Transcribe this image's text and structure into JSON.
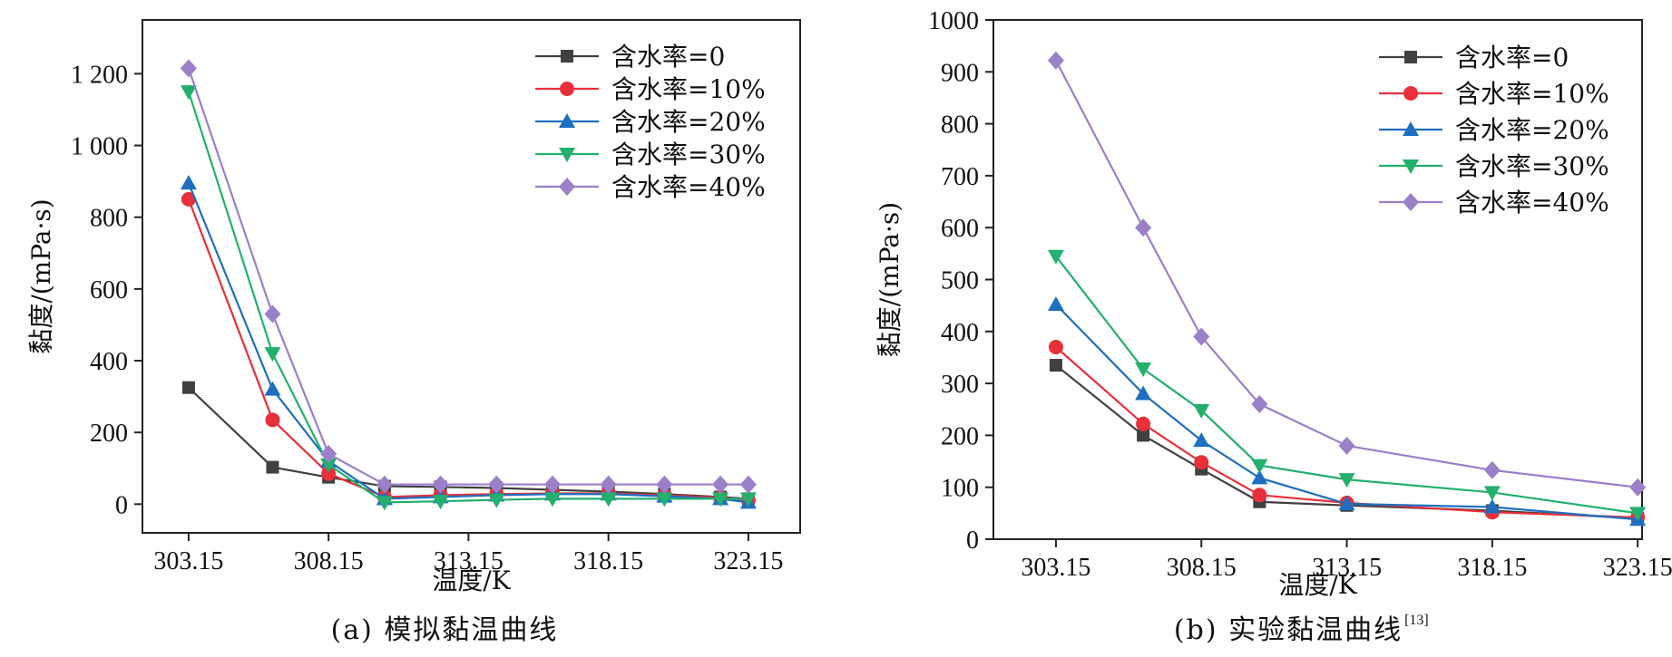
{
  "chart_data": [
    {
      "type": "line",
      "panel": "a",
      "caption": "(a) 模拟黏温曲线",
      "xlabel": "温度/K",
      "ylabel": "黏度/(mPa·s)",
      "xlim": [
        301.5,
        325
      ],
      "ylim": [
        -80,
        1350
      ],
      "xticks": [
        303.15,
        308.15,
        313.15,
        318.15,
        323.15
      ],
      "xtick_labels": [
        "303.15",
        "308.15",
        "313.15",
        "318.15",
        "323.15"
      ],
      "yticks": [
        0,
        200,
        400,
        600,
        800,
        1000,
        1200
      ],
      "ytick_labels": [
        "0",
        "200",
        "400",
        "600",
        "800",
        "1 000",
        "1 200"
      ],
      "legend_position": "top-right",
      "x": [
        303.15,
        306.15,
        308.15,
        310.15,
        312.15,
        314.15,
        316.15,
        318.15,
        320.15,
        322.15,
        323.15
      ],
      "series": [
        {
          "name": "含水率=0",
          "color": "#404040",
          "marker": "square",
          "values": [
            325,
            103,
            75,
            50,
            48,
            45,
            40,
            35,
            28,
            20,
            15
          ]
        },
        {
          "name": "含水率=10%",
          "color": "#e8303a",
          "marker": "circle",
          "values": [
            850,
            235,
            85,
            20,
            25,
            28,
            30,
            30,
            25,
            18,
            10
          ]
        },
        {
          "name": "含水率=20%",
          "color": "#1e6fc0",
          "marker": "triangle-up",
          "values": [
            895,
            320,
            120,
            15,
            20,
            25,
            28,
            28,
            22,
            15,
            5
          ]
        },
        {
          "name": "含水率=30%",
          "color": "#22b06c",
          "marker": "triangle-down",
          "values": [
            1150,
            420,
            110,
            5,
            8,
            12,
            15,
            15,
            15,
            15,
            15
          ]
        },
        {
          "name": "含水率=40%",
          "color": "#9b7fc9",
          "marker": "diamond",
          "values": [
            1215,
            530,
            140,
            55,
            55,
            55,
            55,
            55,
            55,
            55,
            55
          ]
        }
      ]
    },
    {
      "type": "line",
      "panel": "b",
      "caption": "(b) 实验黏温曲线",
      "caption_sup": "[13]",
      "xlabel": "温度/K",
      "ylabel": "黏度/(mPa·s)",
      "xlim": [
        301.0,
        323.3
      ],
      "ylim": [
        0,
        1000
      ],
      "xticks": [
        303.15,
        308.15,
        313.15,
        318.15,
        323.15
      ],
      "xtick_labels": [
        "303.15",
        "308.15",
        "313.15",
        "318.15",
        "323.15"
      ],
      "yticks": [
        0,
        100,
        200,
        300,
        400,
        500,
        600,
        700,
        800,
        900,
        1000
      ],
      "ytick_labels": [
        "0",
        "100",
        "200",
        "300",
        "400",
        "500",
        "600",
        "700",
        "800",
        "900",
        "1000"
      ],
      "legend_position": "top-right",
      "x": [
        303.15,
        306.15,
        308.15,
        310.15,
        313.15,
        318.15,
        323.15
      ],
      "series": [
        {
          "name": "含水率=0",
          "color": "#404040",
          "marker": "square",
          "values": [
            335,
            200,
            135,
            72,
            65,
            55,
            40
          ]
        },
        {
          "name": "含水率=10%",
          "color": "#e8303a",
          "marker": "circle",
          "values": [
            370,
            222,
            148,
            85,
            70,
            52,
            42
          ]
        },
        {
          "name": "含水率=20%",
          "color": "#1e6fc0",
          "marker": "triangle-up",
          "values": [
            452,
            280,
            190,
            118,
            68,
            62,
            38
          ]
        },
        {
          "name": "含水率=30%",
          "color": "#22b06c",
          "marker": "triangle-down",
          "values": [
            545,
            328,
            248,
            142,
            115,
            90,
            50
          ]
        },
        {
          "name": "含水率=40%",
          "color": "#9b7fc9",
          "marker": "diamond",
          "values": [
            922,
            600,
            390,
            260,
            180,
            133,
            100
          ]
        }
      ]
    }
  ]
}
